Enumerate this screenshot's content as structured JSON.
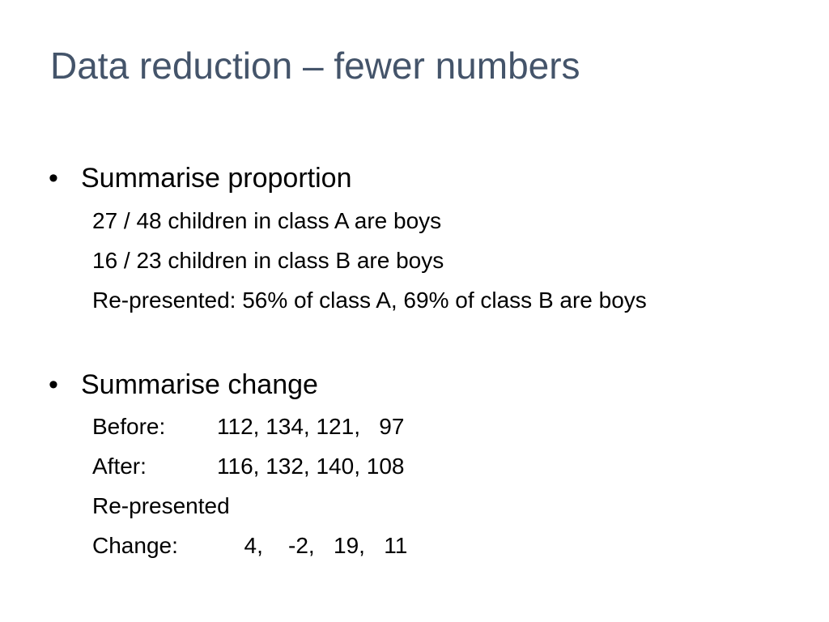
{
  "slide": {
    "title": "Data reduction – fewer numbers",
    "sections": [
      {
        "bullet": "Summarise proportion",
        "lines": [
          "27 / 48 children in class A are boys",
          "16 / 23 children in class B are boys",
          "Re-presented: 56% of class A, 69% of class B are boys"
        ]
      },
      {
        "bullet": "Summarise change",
        "rows": [
          {
            "label": "Before:",
            "values": "112, 134, 121,   97"
          },
          {
            "label": "After:",
            "values": "116, 132, 140, 108"
          }
        ],
        "note": "Re-presented",
        "change": {
          "label": "Change:",
          "values": "  4,    -2,   19,   11"
        }
      }
    ],
    "colors": {
      "title": "#44546a",
      "text": "#000000",
      "background": "#ffffff"
    }
  }
}
